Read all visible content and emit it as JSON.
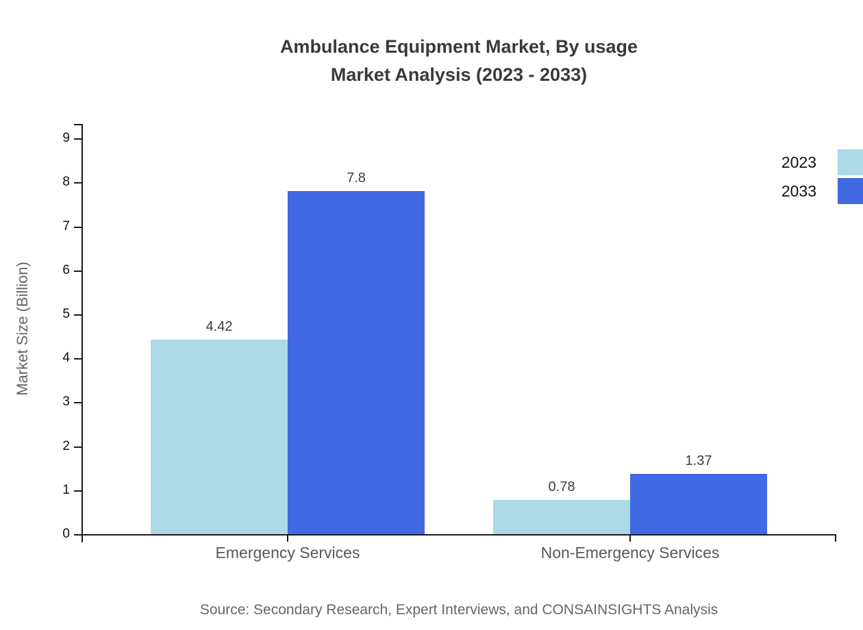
{
  "title": {
    "line1": "Ambulance Equipment Market, By usage",
    "line2": "Market Analysis (2023 - 2033)"
  },
  "source": "Source: Secondary Research, Expert Interviews, and CONSAINSIGHTS Analysis",
  "chart_data": {
    "type": "bar",
    "title": "Ambulance Equipment Market, By usage Market Analysis (2023 - 2033)",
    "categories": [
      "Emergency Services",
      "Non-Emergency Services"
    ],
    "series": [
      {
        "name": "2023",
        "color": "#ADD8E6",
        "values": [
          4.42,
          0.78
        ]
      },
      {
        "name": "2033",
        "color": "#4169E1",
        "values": [
          7.8,
          1.37
        ]
      }
    ],
    "value_labels": [
      "4.42",
      "7.8",
      "0.78",
      "1.37"
    ],
    "xlabel": "",
    "ylabel": "Market Size (Billion)",
    "ylim": [
      0,
      9.3
    ],
    "yticks": [
      0,
      1,
      2,
      3,
      4,
      5,
      6,
      7,
      8,
      9
    ],
    "grid": false,
    "legend_position": "right-edge"
  },
  "colors": {
    "background": "#ffffff",
    "title_text": "#3a3a3a",
    "axis": "#1a1a1a",
    "tick_label": "#111111",
    "category_label": "#595959",
    "axis_title": "#666666",
    "value_label": "#3d3d3d",
    "legend_text": "#111111",
    "source_text": "#666666",
    "series_2023": "#ADD8E6",
    "series_2033": "#4169E1"
  }
}
